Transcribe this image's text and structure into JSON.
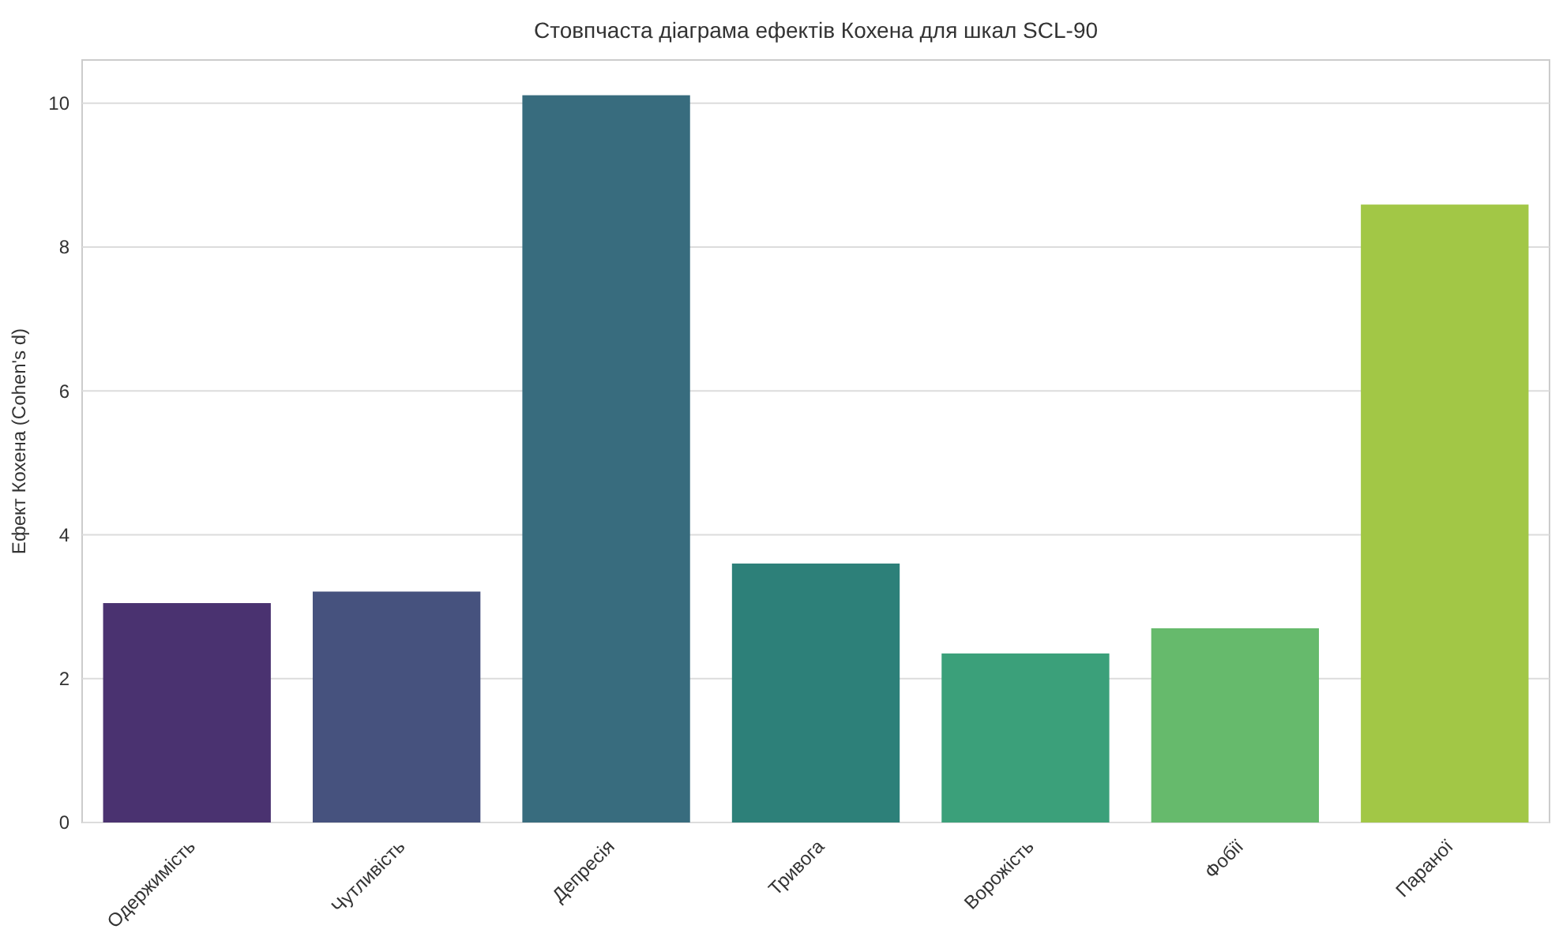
{
  "chart_data": {
    "type": "bar",
    "title": "Стовпчаста діаграма ефектів Кохена для шкал SCL-90",
    "ylabel": "Ефект Кохена (Cohen's d)",
    "categories": [
      "Одержимість",
      "Чутливість",
      "Депресія",
      "Тривога",
      "Ворожість",
      "Фобії",
      "Параної"
    ],
    "values": [
      3.05,
      3.21,
      10.11,
      3.6,
      2.35,
      2.7,
      8.59
    ],
    "colors": [
      "#4a3270",
      "#46527e",
      "#386c7e",
      "#2d8079",
      "#3ba07a",
      "#66ba6c",
      "#a2c746"
    ],
    "ylim": [
      0,
      10.6
    ],
    "yticks": [
      0,
      2,
      4,
      6,
      8,
      10
    ],
    "grid": "y"
  }
}
